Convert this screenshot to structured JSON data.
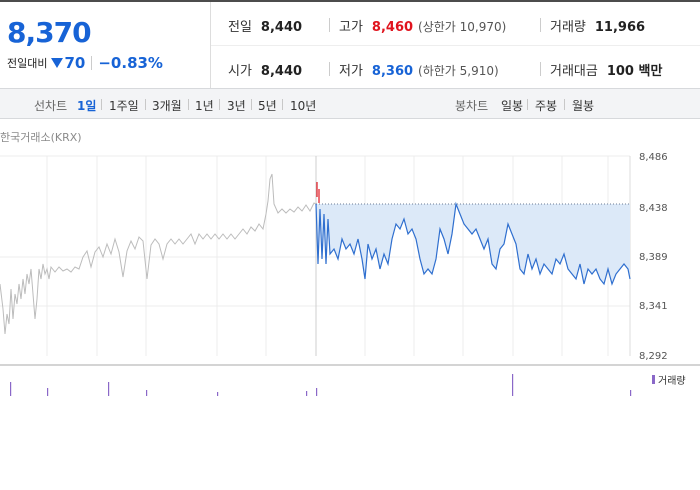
{
  "quote": {
    "price": "8,370",
    "change_label": "전일대비",
    "change_amount": "70",
    "change_percent": "−0.83%",
    "colors": {
      "down": "#1763d6",
      "up": "#e0141e"
    }
  },
  "stats": {
    "prev_close": {
      "label": "전일",
      "value": "8,440"
    },
    "open": {
      "label": "시가",
      "value": "8,440"
    },
    "high": {
      "label": "고가",
      "value": "8,460",
      "limit_text": "(상한가 10,970)"
    },
    "low": {
      "label": "저가",
      "value": "8,360",
      "limit_text": "(하한가 5,910)"
    },
    "volume": {
      "label": "거래량",
      "value": "11,966"
    },
    "trade_value": {
      "label": "거래대금",
      "value": "100 백만"
    }
  },
  "tabs": {
    "line_label": "선차트",
    "line_periods": [
      "1일",
      "1주일",
      "3개월",
      "1년",
      "3년",
      "5년",
      "10년"
    ],
    "active_line_period": "1일",
    "candle_label": "봉차트",
    "candle_periods": [
      "일봉",
      "주봉",
      "월봉"
    ]
  },
  "chart": {
    "source": "한국거래소(KRX)",
    "y_ticks": [
      "8,486",
      "8,438",
      "8,389",
      "8,341",
      "8,292"
    ],
    "volume_label": "거래량",
    "colors": {
      "prev_day_line": "#bcbcbc",
      "today_line": "#2f6fcf",
      "fill": "#dce9f8",
      "volume_bar": "#8a68c8"
    }
  }
}
